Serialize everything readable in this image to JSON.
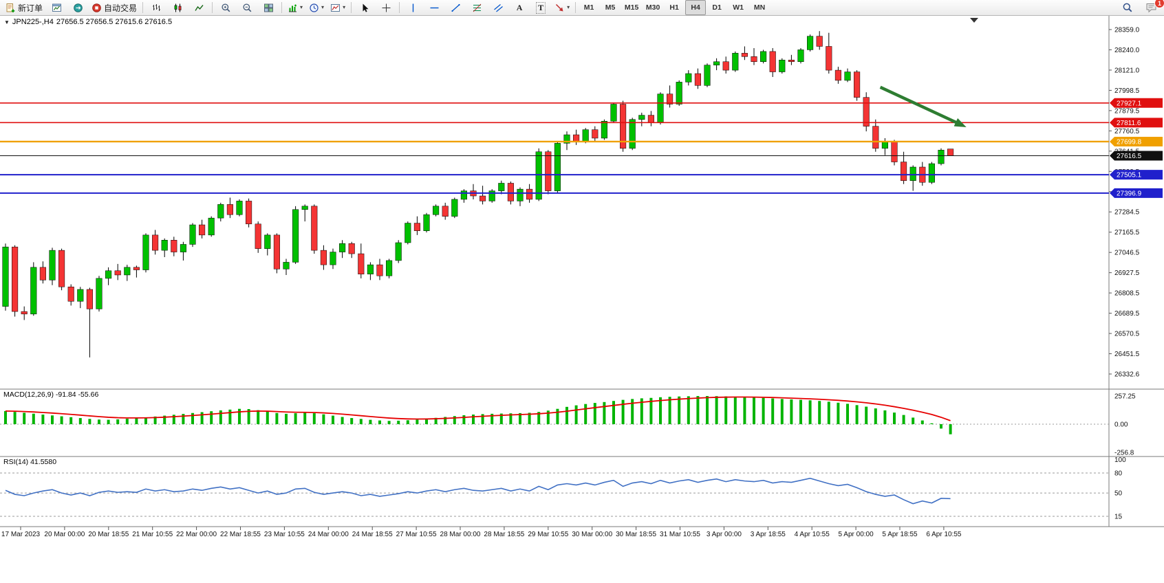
{
  "icons": {
    "caret_down": "▾",
    "triangle_down": "▼"
  },
  "toolbar": {
    "new_order": "新订单",
    "autotrading": "自动交易",
    "text_tool": "A",
    "label_tool": "T",
    "timeframes": [
      "M1",
      "M5",
      "M15",
      "M30",
      "H1",
      "H4",
      "D1",
      "W1",
      "MN"
    ],
    "active_timeframe": "H4",
    "notification_badge": "1"
  },
  "chart_data": {
    "type": "candlestick",
    "symbol": "JPN225-",
    "timeframe": "H4",
    "title": "JPN225-,H4",
    "ohlc_line": "27656.5 27656.5 27615.6 27616.5",
    "last_ohlc": {
      "open": 27656.5,
      "high": 27656.5,
      "low": 27615.6,
      "close": 27616.5
    },
    "price_axis_labels": [
      "28359.0",
      "28240.0",
      "28121.0",
      "27998.5",
      "27879.5",
      "27760.5",
      "27641.5",
      "27522.5",
      "27403.5",
      "27284.5",
      "27165.5",
      "27046.5",
      "26927.5",
      "26808.5",
      "26689.5",
      "26570.5",
      "26451.5",
      "26332.6"
    ],
    "time_axis_labels": [
      "17 Mar 2023",
      "20 Mar 00:00",
      "20 Mar 18:55",
      "21 Mar 10:55",
      "22 Mar 00:00",
      "22 Mar 18:55",
      "23 Mar 10:55",
      "24 Mar 00:00",
      "24 Mar 18:55",
      "27 Mar 10:55",
      "28 Mar 00:00",
      "28 Mar 18:55",
      "29 Mar 10:55",
      "30 Mar 00:00",
      "30 Mar 18:55",
      "31 Mar 10:55",
      "3 Apr 00:00",
      "3 Apr 18:55",
      "4 Apr 10:55",
      "5 Apr 00:00",
      "5 Apr 18:55",
      "6 Apr 10:55"
    ],
    "levels": [
      {
        "label": "27927.1",
        "price": 27927.1,
        "color": "#e01010",
        "width": 1.6
      },
      {
        "label": "27811.6",
        "price": 27811.6,
        "color": "#e01010",
        "width": 1.6
      },
      {
        "label": "27699.8",
        "price": 27699.8,
        "color": "#f0a000",
        "width": 2.4
      },
      {
        "label": "27616.5",
        "price": 27616.5,
        "color": "#101010",
        "width": 1
      },
      {
        "label": "27505.1",
        "price": 27505.1,
        "color": "#2020cc",
        "width": 2
      },
      {
        "label": "27396.9",
        "price": 27396.9,
        "color": "#2020cc",
        "width": 2
      }
    ],
    "arrow_annotation": {
      "from_bar": 93.5,
      "from_price": 28020,
      "to_bar": 102.3,
      "to_price": 27795,
      "color": "#2e7d32"
    },
    "ohlc": [
      [
        26730,
        27100,
        26705,
        27080
      ],
      [
        27080,
        27090,
        26670,
        26700
      ],
      [
        26700,
        26730,
        26650,
        26685
      ],
      [
        26685,
        26990,
        26675,
        26960
      ],
      [
        26960,
        26995,
        26865,
        26885
      ],
      [
        26885,
        27075,
        26855,
        27060
      ],
      [
        27060,
        27070,
        26825,
        26845
      ],
      [
        26845,
        26860,
        26735,
        26760
      ],
      [
        26760,
        26845,
        26720,
        26830
      ],
      [
        26830,
        26840,
        26430,
        26715
      ],
      [
        26715,
        26910,
        26700,
        26895
      ],
      [
        26895,
        26960,
        26855,
        26940
      ],
      [
        26940,
        26980,
        26885,
        26915
      ],
      [
        26915,
        26975,
        26880,
        26960
      ],
      [
        26960,
        26970,
        26900,
        26945
      ],
      [
        26945,
        27160,
        26930,
        27150
      ],
      [
        27150,
        27180,
        27035,
        27060
      ],
      [
        27060,
        27130,
        27020,
        27120
      ],
      [
        27120,
        27140,
        27025,
        27050
      ],
      [
        27050,
        27110,
        27000,
        27095
      ],
      [
        27095,
        27220,
        27080,
        27210
      ],
      [
        27210,
        27240,
        27130,
        27150
      ],
      [
        27150,
        27260,
        27140,
        27250
      ],
      [
        27250,
        27340,
        27230,
        27330
      ],
      [
        27330,
        27370,
        27250,
        27270
      ],
      [
        27270,
        27360,
        27260,
        27350
      ],
      [
        27350,
        27365,
        27195,
        27215
      ],
      [
        27215,
        27230,
        27045,
        27070
      ],
      [
        27070,
        27160,
        27030,
        27150
      ],
      [
        27150,
        27160,
        26925,
        26950
      ],
      [
        26950,
        27010,
        26915,
        26990
      ],
      [
        26990,
        27320,
        26980,
        27300
      ],
      [
        27300,
        27330,
        27230,
        27320
      ],
      [
        27320,
        27330,
        27040,
        27060
      ],
      [
        27060,
        27090,
        26945,
        26975
      ],
      [
        26975,
        27070,
        26950,
        27050
      ],
      [
        27050,
        27120,
        27015,
        27100
      ],
      [
        27100,
        27110,
        27015,
        27040
      ],
      [
        27040,
        27100,
        26895,
        26920
      ],
      [
        26920,
        26990,
        26885,
        26975
      ],
      [
        26975,
        27010,
        26885,
        26910
      ],
      [
        26910,
        27010,
        26895,
        27000
      ],
      [
        27000,
        27120,
        26985,
        27105
      ],
      [
        27105,
        27230,
        27095,
        27220
      ],
      [
        27220,
        27260,
        27150,
        27175
      ],
      [
        27175,
        27280,
        27165,
        27270
      ],
      [
        27270,
        27330,
        27260,
        27320
      ],
      [
        27320,
        27340,
        27240,
        27260
      ],
      [
        27260,
        27370,
        27250,
        27360
      ],
      [
        27360,
        27420,
        27340,
        27410
      ],
      [
        27410,
        27450,
        27360,
        27380
      ],
      [
        27380,
        27440,
        27330,
        27350
      ],
      [
        27350,
        27420,
        27340,
        27410
      ],
      [
        27410,
        27470,
        27390,
        27455
      ],
      [
        27455,
        27465,
        27330,
        27350
      ],
      [
        27350,
        27430,
        27320,
        27420
      ],
      [
        27420,
        27450,
        27340,
        27360
      ],
      [
        27360,
        27660,
        27350,
        27640
      ],
      [
        27640,
        27650,
        27390,
        27410
      ],
      [
        27410,
        27700,
        27400,
        27690
      ],
      [
        27690,
        27760,
        27650,
        27740
      ],
      [
        27740,
        27770,
        27680,
        27700
      ],
      [
        27700,
        27780,
        27690,
        27770
      ],
      [
        27770,
        27790,
        27700,
        27720
      ],
      [
        27720,
        27830,
        27710,
        27820
      ],
      [
        27820,
        27930,
        27810,
        27920
      ],
      [
        27920,
        27940,
        27640,
        27660
      ],
      [
        27660,
        27840,
        27650,
        27830
      ],
      [
        27830,
        27870,
        27790,
        27855
      ],
      [
        27855,
        27880,
        27790,
        27810
      ],
      [
        27810,
        27990,
        27800,
        27980
      ],
      [
        27980,
        28030,
        27900,
        27920
      ],
      [
        27920,
        28060,
        27910,
        28050
      ],
      [
        28050,
        28120,
        28030,
        28100
      ],
      [
        28100,
        28130,
        28010,
        28030
      ],
      [
        28030,
        28160,
        28020,
        28150
      ],
      [
        28150,
        28190,
        28120,
        28170
      ],
      [
        28170,
        28200,
        28100,
        28120
      ],
      [
        28120,
        28230,
        28110,
        28220
      ],
      [
        28220,
        28260,
        28180,
        28200
      ],
      [
        28200,
        28250,
        28150,
        28170
      ],
      [
        28170,
        28240,
        28160,
        28230
      ],
      [
        28230,
        28250,
        28080,
        28110
      ],
      [
        28110,
        28190,
        28100,
        28180
      ],
      [
        28180,
        28210,
        28150,
        28170
      ],
      [
        28170,
        28250,
        28160,
        28240
      ],
      [
        28240,
        28330,
        28230,
        28320
      ],
      [
        28320,
        28350,
        28240,
        28260
      ],
      [
        28260,
        28340,
        28100,
        28120
      ],
      [
        28120,
        28140,
        28040,
        28060
      ],
      [
        28060,
        28130,
        28050,
        28110
      ],
      [
        28110,
        28120,
        27940,
        27960
      ],
      [
        27960,
        27990,
        27760,
        27790
      ],
      [
        27790,
        27830,
        27640,
        27660
      ],
      [
        27660,
        27720,
        27620,
        27700
      ],
      [
        27700,
        27710,
        27560,
        27580
      ],
      [
        27580,
        27640,
        27450,
        27470
      ],
      [
        27470,
        27560,
        27410,
        27550
      ],
      [
        27550,
        27580,
        27440,
        27460
      ],
      [
        27460,
        27580,
        27450,
        27570
      ],
      [
        27570,
        27660,
        27560,
        27650
      ],
      [
        27656.5,
        27656.5,
        27615.6,
        27616.5
      ]
    ],
    "macd": {
      "label": "MACD(12,26,9) -91.84 -55.66",
      "axis_labels": [
        "257.25",
        "0.00",
        "-256.8"
      ],
      "signal_period": 9,
      "values": [
        120,
        112,
        104,
        96,
        88,
        80,
        72,
        64,
        56,
        48,
        42,
        40,
        44,
        50,
        56,
        62,
        70,
        78,
        86,
        94,
        102,
        110,
        118,
        126,
        133,
        140,
        138,
        128,
        115,
        102,
        95,
        100,
        104,
        100,
        90,
        78,
        66,
        56,
        48,
        40,
        34,
        30,
        32,
        36,
        42,
        50,
        58,
        66,
        74,
        82,
        88,
        92,
        95,
        97,
        99,
        101,
        104,
        112,
        124,
        140,
        158,
        172,
        184,
        194,
        202,
        212,
        222,
        230,
        236,
        240,
        246,
        250,
        253,
        255,
        257,
        257,
        256,
        254,
        251,
        248,
        244,
        240,
        235,
        230,
        226,
        222,
        218,
        212,
        205,
        196,
        186,
        174,
        160,
        144,
        126,
        106,
        84,
        60,
        34,
        8,
        -40,
        -92
      ]
    },
    "rsi": {
      "label": "RSI(14) 41.5580",
      "axis_labels": [
        "100",
        "80",
        "50",
        "15"
      ],
      "levels": [
        80,
        50,
        15
      ],
      "current": 41.558,
      "values": [
        54,
        48,
        46,
        50,
        53,
        55,
        50,
        47,
        50,
        46,
        51,
        53,
        51,
        52,
        51,
        56,
        53,
        55,
        52,
        53,
        56,
        54,
        57,
        59,
        56,
        58,
        54,
        50,
        53,
        48,
        50,
        56,
        57,
        51,
        48,
        50,
        52,
        50,
        46,
        48,
        45,
        47,
        49,
        52,
        50,
        53,
        55,
        52,
        55,
        57,
        54,
        53,
        55,
        57,
        53,
        56,
        53,
        60,
        55,
        62,
        64,
        62,
        65,
        62,
        66,
        69,
        60,
        65,
        67,
        64,
        69,
        65,
        68,
        70,
        66,
        69,
        71,
        67,
        70,
        68,
        67,
        69,
        65,
        67,
        66,
        69,
        72,
        68,
        64,
        61,
        63,
        58,
        52,
        48,
        45,
        47,
        40,
        34,
        38,
        35,
        42,
        41.56
      ]
    },
    "colors": {
      "bull": "#00c000",
      "bear": "#f43434",
      "wick": "#000000",
      "macd_histogram": "#00b400",
      "macd_signal": "#e60000",
      "rsi_line": "#4070c4",
      "arrow": "#2e7d32"
    }
  }
}
